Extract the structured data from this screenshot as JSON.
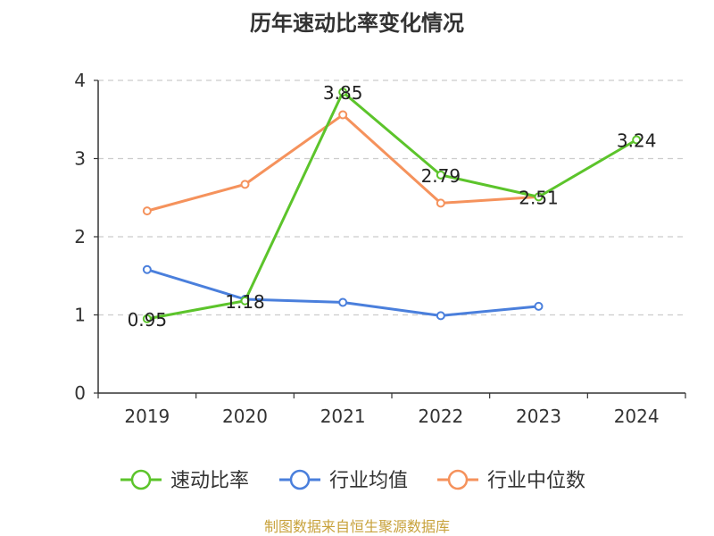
{
  "chart_data": {
    "type": "line",
    "title": "历年速动比率变化情况",
    "categories": [
      "2019",
      "2020",
      "2021",
      "2022",
      "2023",
      "2024"
    ],
    "ylim": [
      0,
      4
    ],
    "yticks": [
      0,
      1,
      2,
      3,
      4
    ],
    "grid": true,
    "legend_position": "bottom",
    "series": [
      {
        "name": "速动比率",
        "color": "#5cc42b",
        "values": [
          0.95,
          1.18,
          3.85,
          2.79,
          2.51,
          3.24
        ],
        "labels": [
          "0.95",
          "1.18",
          "3.85",
          "2.79",
          "2.51",
          "3.24"
        ]
      },
      {
        "name": "行业均值",
        "color": "#4a7fdc",
        "values": [
          1.58,
          1.2,
          1.16,
          0.99,
          1.11,
          null
        ]
      },
      {
        "name": "行业中位数",
        "color": "#f5925c",
        "values": [
          2.33,
          2.67,
          3.56,
          2.43,
          2.51,
          null
        ]
      }
    ]
  },
  "footer": {
    "source": "制图数据来自恒生聚源数据库"
  }
}
